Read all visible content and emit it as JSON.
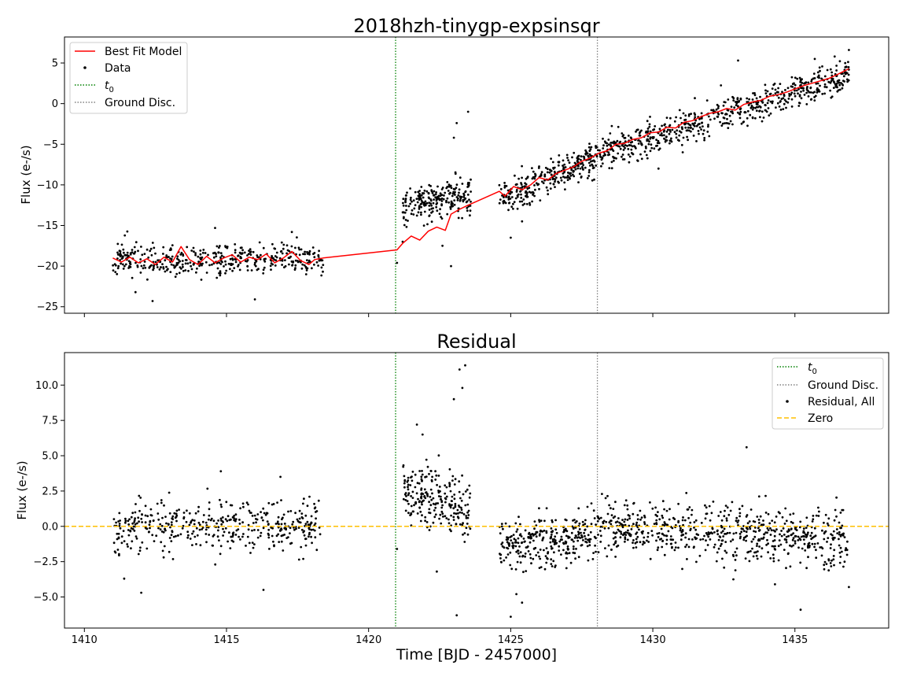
{
  "chart_data": [
    {
      "type": "scatter",
      "title": "2018hzh-tinygp-expsinsqr",
      "xlabel": "",
      "ylabel": "Flux (e-/s)",
      "xlim": [
        1409.3,
        1438.3
      ],
      "ylim": [
        -25.8,
        8.2
      ],
      "xticks": [
        1410,
        1415,
        1420,
        1425,
        1430,
        1435
      ],
      "show_xtick_labels": false,
      "yticks": [
        -25,
        -20,
        -15,
        -10,
        -5,
        0,
        5
      ],
      "ytick_labels": [
        "−25",
        "−20",
        "−15",
        "−10",
        "−5",
        "0",
        "5"
      ],
      "grid": false,
      "legend_position": "upper-left",
      "legend": [
        {
          "label": "Best Fit Model",
          "style": "line",
          "color": "#ff0000"
        },
        {
          "label": "Data",
          "style": "dot",
          "color": "#000000"
        },
        {
          "label": "t",
          "subscript": "0",
          "style": "dotted",
          "color": "#008000"
        },
        {
          "label": "Ground Disc.",
          "style": "dotted",
          "color": "#808080"
        }
      ],
      "vlines": [
        {
          "name": "t0",
          "x": 1420.95,
          "color": "#008000"
        },
        {
          "name": "ground-disc",
          "x": 1428.05,
          "color": "#808080"
        }
      ],
      "data_segments": [
        {
          "x_start": 1411.0,
          "x_end": 1418.4,
          "y_start": -19.2,
          "y_end": -19.2,
          "scatter": 1.3,
          "count": 420,
          "outliers": [
            [
              1411.8,
              -23.2
            ],
            [
              1412.4,
              -24.3
            ],
            [
              1416.0,
              -24.1
            ],
            [
              1414.6,
              -15.3
            ],
            [
              1417.3,
              -15.8
            ]
          ]
        },
        {
          "x_start": 1421.2,
          "x_end": 1423.6,
          "y_start": -12.6,
          "y_end": -11.0,
          "scatter": 1.7,
          "count": 230,
          "outliers": [
            [
              1421.0,
              -19.6
            ],
            [
              1421.2,
              -17.0
            ],
            [
              1423.1,
              -2.4
            ],
            [
              1423.5,
              -1.0
            ],
            [
              1423.0,
              -4.2
            ],
            [
              1422.9,
              -20.0
            ],
            [
              1422.6,
              -17.5
            ]
          ]
        },
        {
          "x_start": 1424.6,
          "x_end": 1428.0,
          "y_start": -12.0,
          "y_end": -6.5,
          "scatter": 1.3,
          "count": 300,
          "outliers": [
            [
              1425.0,
              -16.5
            ],
            [
              1425.4,
              -14.5
            ]
          ]
        },
        {
          "x_start": 1428.0,
          "x_end": 1436.9,
          "y_start": -6.2,
          "y_end": 3.5,
          "scatter": 1.3,
          "count": 650,
          "outliers": [
            [
              1433.0,
              5.3
            ],
            [
              1435.7,
              5.5
            ],
            [
              1436.4,
              5.8
            ],
            [
              1436.9,
              6.6
            ],
            [
              1430.2,
              -8.0
            ]
          ]
        }
      ],
      "series": [
        {
          "name": "Best Fit Model",
          "kind": "line",
          "color": "#ff0000",
          "points": [
            [
              1411.0,
              -19.0
            ],
            [
              1411.3,
              -19.5
            ],
            [
              1411.6,
              -18.9
            ],
            [
              1411.9,
              -19.6
            ],
            [
              1412.2,
              -19.1
            ],
            [
              1412.5,
              -19.8
            ],
            [
              1412.8,
              -18.9
            ],
            [
              1413.1,
              -19.5
            ],
            [
              1413.4,
              -17.6
            ],
            [
              1413.7,
              -19.2
            ],
            [
              1414.0,
              -19.8
            ],
            [
              1414.3,
              -18.8
            ],
            [
              1414.6,
              -19.6
            ],
            [
              1414.9,
              -19.0
            ],
            [
              1415.2,
              -18.6
            ],
            [
              1415.5,
              -19.5
            ],
            [
              1415.8,
              -18.9
            ],
            [
              1416.1,
              -19.2
            ],
            [
              1416.4,
              -18.5
            ],
            [
              1416.7,
              -19.6
            ],
            [
              1417.0,
              -19.0
            ],
            [
              1417.3,
              -18.2
            ],
            [
              1417.6,
              -19.3
            ],
            [
              1417.9,
              -19.8
            ],
            [
              1418.1,
              -19.2
            ],
            [
              1418.4,
              -19.0
            ],
            [
              1421.0,
              -18.0
            ],
            [
              1421.2,
              -17.2
            ],
            [
              1421.5,
              -16.3
            ],
            [
              1421.8,
              -16.8
            ],
            [
              1422.1,
              -15.7
            ],
            [
              1422.4,
              -15.2
            ],
            [
              1422.7,
              -15.6
            ],
            [
              1422.9,
              -13.6
            ],
            [
              1423.2,
              -13.0
            ],
            [
              1423.5,
              -12.5
            ],
            [
              1424.6,
              -10.8
            ],
            [
              1424.8,
              -11.4
            ],
            [
              1425.1,
              -10.2
            ],
            [
              1425.4,
              -10.6
            ],
            [
              1425.7,
              -10.0
            ],
            [
              1426.0,
              -9.1
            ],
            [
              1426.3,
              -9.4
            ],
            [
              1426.6,
              -8.6
            ],
            [
              1426.9,
              -8.2
            ],
            [
              1427.2,
              -7.8
            ],
            [
              1427.5,
              -7.1
            ],
            [
              1427.8,
              -6.7
            ],
            [
              1428.1,
              -6.1
            ],
            [
              1428.4,
              -5.8
            ],
            [
              1428.7,
              -5.0
            ],
            [
              1429.0,
              -4.9
            ],
            [
              1429.3,
              -4.4
            ],
            [
              1429.6,
              -4.2
            ],
            [
              1429.9,
              -3.6
            ],
            [
              1430.2,
              -3.5
            ],
            [
              1430.5,
              -2.9
            ],
            [
              1430.8,
              -3.0
            ],
            [
              1431.1,
              -2.3
            ],
            [
              1431.4,
              -2.1
            ],
            [
              1431.7,
              -1.6
            ],
            [
              1432.0,
              -1.2
            ],
            [
              1432.3,
              -1.0
            ],
            [
              1432.6,
              -0.6
            ],
            [
              1432.9,
              -0.8
            ],
            [
              1433.2,
              -0.1
            ],
            [
              1433.5,
              0.2
            ],
            [
              1433.8,
              0.4
            ],
            [
              1434.1,
              0.9
            ],
            [
              1434.4,
              1.1
            ],
            [
              1434.7,
              1.4
            ],
            [
              1435.0,
              1.8
            ],
            [
              1435.3,
              2.2
            ],
            [
              1435.6,
              2.5
            ],
            [
              1435.9,
              2.8
            ],
            [
              1436.2,
              3.1
            ],
            [
              1436.5,
              3.6
            ],
            [
              1436.9,
              4.3
            ]
          ]
        }
      ]
    },
    {
      "type": "scatter",
      "title": "Residual",
      "xlabel": "Time [BJD - 2457000]",
      "ylabel": "Flux (e-/s)",
      "xlim": [
        1409.3,
        1438.3
      ],
      "ylim": [
        -7.2,
        12.3
      ],
      "xticks": [
        1410,
        1415,
        1420,
        1425,
        1430,
        1435
      ],
      "xtick_labels": [
        "1410",
        "1415",
        "1420",
        "1425",
        "1430",
        "1435"
      ],
      "yticks": [
        -5.0,
        -2.5,
        0.0,
        2.5,
        5.0,
        7.5,
        10.0
      ],
      "ytick_labels": [
        "−5.0",
        "−2.5",
        "0.0",
        "2.5",
        "5.0",
        "7.5",
        "10.0"
      ],
      "grid": false,
      "legend_position": "upper-right",
      "legend": [
        {
          "label": "t",
          "subscript": "0",
          "style": "dotted",
          "color": "#008000"
        },
        {
          "label": "Ground Disc.",
          "style": "dotted",
          "color": "#808080"
        },
        {
          "label": "Residual, All",
          "style": "dot",
          "color": "#000000"
        },
        {
          "label": "Zero",
          "style": "dashed",
          "color": "#ffbf00"
        }
      ],
      "vlines": [
        {
          "name": "t0",
          "x": 1420.95,
          "color": "#008000"
        },
        {
          "name": "ground-disc",
          "x": 1428.05,
          "color": "#808080"
        }
      ],
      "hline": {
        "name": "zero",
        "y": 0.0,
        "color": "#ffbf00"
      },
      "data_segments": [
        {
          "x_start": 1411.0,
          "x_end": 1418.4,
          "y_start": 0.0,
          "y_end": 0.0,
          "scatter": 1.2,
          "count": 420,
          "outliers": [
            [
              1412.0,
              -4.7
            ],
            [
              1411.4,
              -3.7
            ],
            [
              1416.3,
              -4.5
            ],
            [
              1414.8,
              3.9
            ],
            [
              1416.9,
              3.5
            ]
          ]
        },
        {
          "x_start": 1421.2,
          "x_end": 1423.6,
          "y_start": 2.5,
          "y_end": 1.5,
          "scatter": 1.6,
          "count": 230,
          "outliers": [
            [
              1421.7,
              7.2
            ],
            [
              1421.9,
              6.5
            ],
            [
              1423.2,
              11.1
            ],
            [
              1423.4,
              11.4
            ],
            [
              1423.0,
              9.0
            ],
            [
              1423.3,
              9.8
            ],
            [
              1423.1,
              -6.3
            ],
            [
              1422.4,
              -3.2
            ],
            [
              1421.0,
              -1.6
            ]
          ]
        },
        {
          "x_start": 1424.6,
          "x_end": 1428.0,
          "y_start": -1.5,
          "y_end": -0.5,
          "scatter": 1.2,
          "count": 300,
          "outliers": [
            [
              1425.0,
              -6.4
            ],
            [
              1425.4,
              -5.4
            ],
            [
              1425.2,
              -4.8
            ]
          ]
        },
        {
          "x_start": 1428.0,
          "x_end": 1436.9,
          "y_start": 0.0,
          "y_end": -1.0,
          "scatter": 1.3,
          "count": 650,
          "outliers": [
            [
              1433.3,
              5.6
            ],
            [
              1435.2,
              -5.9
            ],
            [
              1436.9,
              -4.3
            ],
            [
              1434.3,
              -4.1
            ]
          ]
        }
      ]
    }
  ]
}
